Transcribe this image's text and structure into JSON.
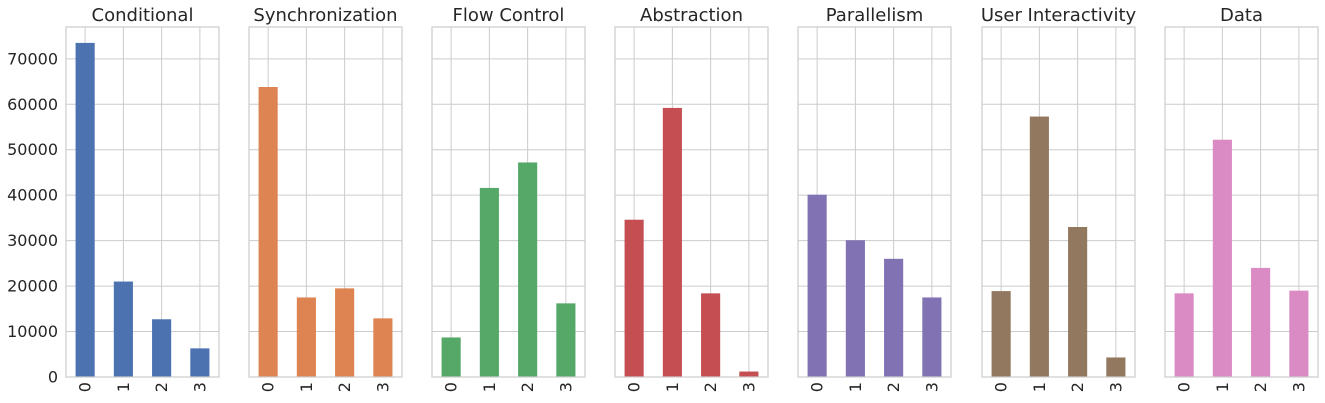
{
  "chart_data": {
    "type": "bar",
    "layout": "small-multiples",
    "shared_y": true,
    "ylim": [
      0,
      77000
    ],
    "yticks": [
      0,
      10000,
      20000,
      30000,
      40000,
      50000,
      60000,
      70000
    ],
    "ytick_labels": [
      "0",
      "10000",
      "20000",
      "30000",
      "40000",
      "50000",
      "60000",
      "70000"
    ],
    "grid": true,
    "categories": [
      "0",
      "1",
      "2",
      "3"
    ],
    "series": [
      {
        "name": "Conditional",
        "color": "#4c72b0",
        "values": [
          73500,
          21000,
          12700,
          6300
        ]
      },
      {
        "name": "Synchronization",
        "color": "#dd8452",
        "values": [
          63800,
          17500,
          19500,
          12900
        ]
      },
      {
        "name": "Flow Control",
        "color": "#55a868",
        "values": [
          8700,
          41600,
          47200,
          16200
        ]
      },
      {
        "name": "Abstraction",
        "color": "#c44e52",
        "values": [
          34600,
          59200,
          18400,
          1200
        ]
      },
      {
        "name": "Parallelism",
        "color": "#8172b3",
        "values": [
          40100,
          30100,
          26000,
          17500
        ]
      },
      {
        "name": "User Interactivity",
        "color": "#937860",
        "values": [
          18900,
          57300,
          33000,
          4300
        ]
      },
      {
        "name": "Data",
        "color": "#da8bc3",
        "values": [
          18400,
          52200,
          24000,
          19000
        ]
      }
    ]
  }
}
